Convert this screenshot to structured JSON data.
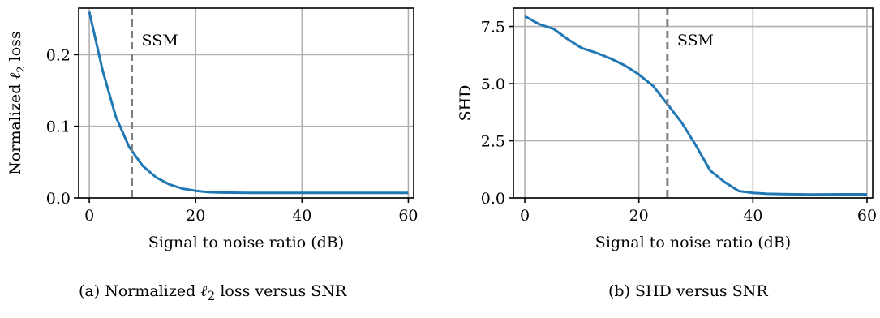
{
  "chart_data": [
    {
      "type": "line",
      "caption_prefix": "(a) Normalized ",
      "caption_symbol": "ℓ",
      "caption_sub": "2",
      "caption_suffix": " loss versus SNR",
      "xlabel": "Signal to noise ratio (dB)",
      "ylabel_prefix": "Normalized ",
      "ylabel_symbol": "ℓ",
      "ylabel_sub": "2",
      "ylabel_suffix": " loss",
      "xlim": [
        -2,
        61
      ],
      "ylim": [
        0,
        0.265
      ],
      "xticks": [
        0,
        20,
        40,
        60
      ],
      "xtick_labels": [
        "0",
        "20",
        "40",
        "60"
      ],
      "yticks": [
        0,
        0.1,
        0.2
      ],
      "ytick_labels": [
        "0.0",
        "0.1",
        "0.2"
      ],
      "grid": true,
      "line_color": "#1f77b4",
      "vline": {
        "x": 8,
        "label": "SSM",
        "color": "#808080"
      },
      "series": [
        {
          "x": [
            0,
            2.5,
            5,
            7.5,
            10,
            12.5,
            15,
            17.5,
            20,
            22.5,
            25,
            30,
            35,
            40,
            45,
            50,
            55,
            60
          ],
          "values": [
            0.26,
            0.178,
            0.113,
            0.071,
            0.045,
            0.029,
            0.019,
            0.013,
            0.01,
            0.008,
            0.0075,
            0.007,
            0.007,
            0.007,
            0.007,
            0.007,
            0.007,
            0.007
          ]
        }
      ]
    },
    {
      "type": "line",
      "caption": "(b) SHD versus SNR",
      "xlabel": "Signal to noise ratio (dB)",
      "ylabel": "SHD",
      "xlim": [
        -2,
        61
      ],
      "ylim": [
        0,
        8.3
      ],
      "xticks": [
        0,
        20,
        40,
        60
      ],
      "xtick_labels": [
        "0",
        "20",
        "40",
        "60"
      ],
      "yticks": [
        0,
        2.5,
        5,
        7.5
      ],
      "ytick_labels": [
        "0.0",
        "2.5",
        "5.0",
        "7.5"
      ],
      "grid": true,
      "line_color": "#1f77b4",
      "vline": {
        "x": 25,
        "label": "SSM",
        "color": "#808080"
      },
      "series": [
        {
          "x": [
            0,
            2.5,
            5,
            7.5,
            10,
            12.5,
            15,
            17.5,
            20,
            22.5,
            25,
            27.5,
            30,
            32.5,
            35,
            37.5,
            40,
            42.5,
            45,
            50,
            55,
            60
          ],
          "values": [
            7.95,
            7.6,
            7.4,
            6.95,
            6.55,
            6.35,
            6.1,
            5.8,
            5.4,
            4.9,
            4.1,
            3.3,
            2.3,
            1.2,
            0.7,
            0.3,
            0.22,
            0.18,
            0.17,
            0.15,
            0.16,
            0.16
          ]
        }
      ]
    }
  ]
}
